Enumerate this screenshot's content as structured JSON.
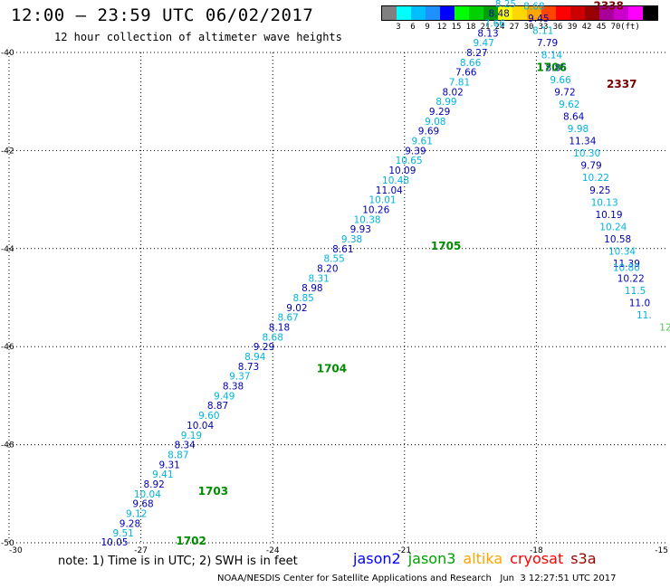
{
  "header": {
    "title": "12:00 – 23:59 UTC 06/02/2017",
    "subtitle": "12 hour collection of altimeter wave heights"
  },
  "legend": {
    "colors": [
      "#808080",
      "#00ffff",
      "#00bfff",
      "#1e90ff",
      "#0000ff",
      "#00ff00",
      "#00d000",
      "#00a000",
      "#ffff00",
      "#ffd700",
      "#ffa500",
      "#ff4500",
      "#ff0000",
      "#cc0000",
      "#990000",
      "#aa0099",
      "#cc00cc",
      "#ff00ff",
      "#000000"
    ],
    "labels": [
      "3",
      "6",
      "9",
      "12",
      "15",
      "18",
      "21",
      "24",
      "27",
      "30",
      "33",
      "36",
      "39",
      "42",
      "45",
      "70",
      "(ft)"
    ]
  },
  "map": {
    "lon_range": [
      -30,
      -15
    ],
    "lat_range": [
      -50,
      -40
    ],
    "lon_ticks": [
      "-30",
      "-27",
      "-24",
      "-21",
      "-18",
      "-15"
    ],
    "lat_ticks": [
      "-40",
      "-42",
      "-44",
      "-46",
      "-48",
      "-50"
    ],
    "color_jason2": "#0000b4",
    "color_jason2_alt": "#00b4dc",
    "color_time": "#008c00",
    "color_time_dark": "#7a0000",
    "color_jason3": "#60c060",
    "tracks": [
      {
        "id": "jason2-pass-1",
        "points": [
          {
            "lon": -27.6,
            "lat": -49.98,
            "v": "10.05"
          },
          {
            "lon": -27.4,
            "lat": -49.8,
            "v": "9.51"
          },
          {
            "lon": -27.25,
            "lat": -49.6,
            "v": "9.28"
          },
          {
            "lon": -27.1,
            "lat": -49.4,
            "v": "9.12"
          },
          {
            "lon": -26.95,
            "lat": -49.2,
            "v": "9.68"
          },
          {
            "lon": -26.85,
            "lat": -49.0,
            "v": "10.04"
          },
          {
            "lon": -26.7,
            "lat": -48.8,
            "v": "8.92"
          },
          {
            "lon": -26.5,
            "lat": -48.6,
            "v": "9.41"
          },
          {
            "lon": -26.35,
            "lat": -48.4,
            "v": "9.31"
          },
          {
            "lon": -26.15,
            "lat": -48.2,
            "v": "8.87"
          },
          {
            "lon": -26.0,
            "lat": -48.0,
            "v": "8.34"
          },
          {
            "lon": -25.85,
            "lat": -47.8,
            "v": "9.19"
          },
          {
            "lon": -25.65,
            "lat": -47.6,
            "v": "10.04"
          },
          {
            "lon": -25.45,
            "lat": -47.4,
            "v": "9.60"
          },
          {
            "lon": -25.25,
            "lat": -47.2,
            "v": "8.87"
          },
          {
            "lon": -25.1,
            "lat": -47.0,
            "v": "9.49"
          },
          {
            "lon": -24.9,
            "lat": -46.8,
            "v": "8.38"
          },
          {
            "lon": -24.75,
            "lat": -46.6,
            "v": "9.37"
          },
          {
            "lon": -24.55,
            "lat": -46.4,
            "v": "8.73"
          },
          {
            "lon": -24.4,
            "lat": -46.2,
            "v": "8.94"
          },
          {
            "lon": -24.2,
            "lat": -46.0,
            "v": "9.29"
          },
          {
            "lon": -24.0,
            "lat": -45.8,
            "v": "8.68"
          },
          {
            "lon": -23.85,
            "lat": -45.6,
            "v": "8.18"
          },
          {
            "lon": -23.65,
            "lat": -45.4,
            "v": "8.67"
          },
          {
            "lon": -23.45,
            "lat": -45.2,
            "v": "9.02"
          },
          {
            "lon": -23.3,
            "lat": -45.0,
            "v": "8.85"
          },
          {
            "lon": -23.1,
            "lat": -44.8,
            "v": "8.98"
          },
          {
            "lon": -22.95,
            "lat": -44.6,
            "v": "8.31"
          },
          {
            "lon": -22.75,
            "lat": -44.4,
            "v": "8.20"
          },
          {
            "lon": -22.6,
            "lat": -44.2,
            "v": "8.55"
          },
          {
            "lon": -22.4,
            "lat": -44.0,
            "v": "8.61"
          },
          {
            "lon": -22.2,
            "lat": -43.8,
            "v": "9.38"
          },
          {
            "lon": -22.0,
            "lat": -43.6,
            "v": "9.93"
          },
          {
            "lon": -21.85,
            "lat": -43.4,
            "v": "10.38"
          },
          {
            "lon": -21.65,
            "lat": -43.2,
            "v": "10.26"
          },
          {
            "lon": -21.5,
            "lat": -43.0,
            "v": "10.01"
          },
          {
            "lon": -21.35,
            "lat": -42.8,
            "v": "11.04"
          },
          {
            "lon": -21.2,
            "lat": -42.6,
            "v": "10.48"
          },
          {
            "lon": -21.05,
            "lat": -42.4,
            "v": "10.09"
          },
          {
            "lon": -20.9,
            "lat": -42.2,
            "v": "10.65"
          },
          {
            "lon": -20.75,
            "lat": -42.0,
            "v": "9.39"
          },
          {
            "lon": -20.6,
            "lat": -41.8,
            "v": "9.61"
          },
          {
            "lon": -20.45,
            "lat": -41.6,
            "v": "9.69"
          },
          {
            "lon": -20.3,
            "lat": -41.4,
            "v": "9.08"
          },
          {
            "lon": -20.2,
            "lat": -41.2,
            "v": "9.29"
          },
          {
            "lon": -20.05,
            "lat": -41.0,
            "v": "8.99"
          },
          {
            "lon": -19.9,
            "lat": -40.8,
            "v": "8.02"
          },
          {
            "lon": -19.75,
            "lat": -40.6,
            "v": "7.81"
          },
          {
            "lon": -19.6,
            "lat": -40.4,
            "v": "7.66"
          },
          {
            "lon": -19.5,
            "lat": -40.2,
            "v": "8.66"
          },
          {
            "lon": -19.35,
            "lat": -40.0,
            "v": "8.27"
          },
          {
            "lon": -19.2,
            "lat": -39.8,
            "v": "9.47"
          },
          {
            "lon": -19.1,
            "lat": -39.6,
            "v": "8.13"
          },
          {
            "lon": -18.95,
            "lat": -39.4,
            "v": "7.66"
          },
          {
            "lon": -18.85,
            "lat": -39.2,
            "v": "8.48"
          },
          {
            "lon": -18.7,
            "lat": -39.0,
            "v": "8.25"
          },
          {
            "lon": -18.55,
            "lat": -38.8,
            "v": "7.63"
          }
        ]
      },
      {
        "id": "jason2-pass-2",
        "points": [
          {
            "lon": -18.2,
            "lat": -38.85,
            "v": "7.61"
          },
          {
            "lon": -18.05,
            "lat": -39.05,
            "v": "8.68"
          },
          {
            "lon": -17.95,
            "lat": -39.3,
            "v": "9.45"
          },
          {
            "lon": -17.85,
            "lat": -39.55,
            "v": "8.11"
          },
          {
            "lon": -17.75,
            "lat": -39.8,
            "v": "7.79"
          },
          {
            "lon": -17.65,
            "lat": -40.05,
            "v": "8.14"
          },
          {
            "lon": -17.55,
            "lat": -40.3,
            "v": "8.86"
          },
          {
            "lon": -17.45,
            "lat": -40.55,
            "v": "9.66"
          },
          {
            "lon": -17.35,
            "lat": -40.8,
            "v": "9.72"
          },
          {
            "lon": -17.25,
            "lat": -41.05,
            "v": "9.62"
          },
          {
            "lon": -17.15,
            "lat": -41.3,
            "v": "8.64"
          },
          {
            "lon": -17.05,
            "lat": -41.55,
            "v": "9.98"
          },
          {
            "lon": -16.95,
            "lat": -41.8,
            "v": "11.34"
          },
          {
            "lon": -16.85,
            "lat": -42.05,
            "v": "10.30"
          },
          {
            "lon": -16.75,
            "lat": -42.3,
            "v": "9.79"
          },
          {
            "lon": -16.65,
            "lat": -42.55,
            "v": "10.22"
          },
          {
            "lon": -16.55,
            "lat": -42.8,
            "v": "9.25"
          },
          {
            "lon": -16.45,
            "lat": -43.05,
            "v": "10.13"
          },
          {
            "lon": -16.35,
            "lat": -43.3,
            "v": "10.19"
          },
          {
            "lon": -16.25,
            "lat": -43.55,
            "v": "10.24"
          },
          {
            "lon": -16.15,
            "lat": -43.8,
            "v": "10.58"
          },
          {
            "lon": -16.05,
            "lat": -44.05,
            "v": "10.34"
          },
          {
            "lon": -15.95,
            "lat": -44.3,
            "v": "11.39"
          },
          {
            "lon": -15.95,
            "lat": -44.38,
            "v": "10.80"
          },
          {
            "lon": -15.85,
            "lat": -44.6,
            "v": "10.22"
          },
          {
            "lon": -15.75,
            "lat": -44.85,
            "v": "11.5"
          },
          {
            "lon": -15.65,
            "lat": -45.1,
            "v": "11.0"
          },
          {
            "lon": -15.55,
            "lat": -45.35,
            "v": "11."
          }
        ]
      }
    ],
    "times": [
      {
        "lon": -26.2,
        "lat": -49.96,
        "v": "1702",
        "dark": false
      },
      {
        "lon": -25.7,
        "lat": -48.95,
        "v": "1703",
        "dark": false
      },
      {
        "lon": -23.0,
        "lat": -46.45,
        "v": "1704",
        "dark": false
      },
      {
        "lon": -20.4,
        "lat": -43.95,
        "v": "1705",
        "dark": false
      },
      {
        "lon": -18.0,
        "lat": -40.3,
        "v": "1706",
        "dark": false
      },
      {
        "lon": -16.4,
        "lat": -40.65,
        "v": "2337",
        "dark": true
      },
      {
        "lon": -16.7,
        "lat": -39.05,
        "v": "2338",
        "dark": true
      }
    ],
    "edge_label": {
      "lon": -15.2,
      "lat": -45.6,
      "v": "12"
    }
  },
  "note": "note: 1) Time is in UTC; 2) SWH is in feet",
  "satellites": [
    {
      "name": "jason2",
      "color": "#0000ff"
    },
    {
      "name": "jason3",
      "color": "#00a000"
    },
    {
      "name": "altika",
      "color": "#ffa500"
    },
    {
      "name": "cryosat",
      "color": "#ff0000"
    },
    {
      "name": "s3a",
      "color": "#990000"
    }
  ],
  "footer": "NOAA/NESDIS Center for Satellite Applications and Research   Jun  3 12:27:51 UTC 2017"
}
